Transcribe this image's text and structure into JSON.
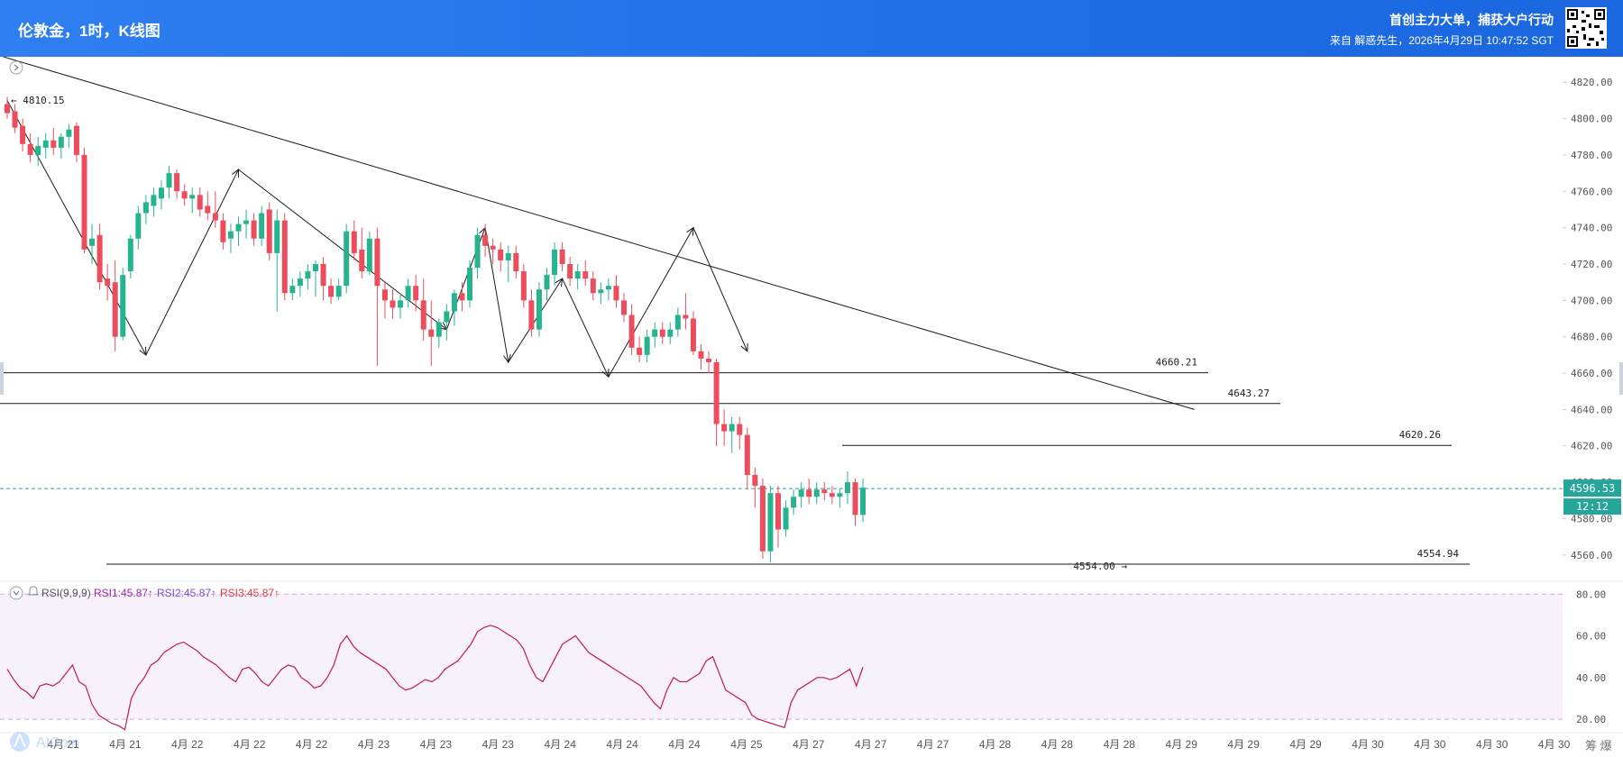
{
  "header": {
    "title": "伦敦金，1时，K线图",
    "slogan": "首创主力大单，捕获大户行动",
    "source": "来自 解惑先生，2026年4月29日 10:47:52 SGT"
  },
  "rsi_legend": {
    "name": "RSI(9,9,9)",
    "rsi1": "RSI1:45.87↑",
    "rsi2": "RSI2:45.87↑",
    "rsi3": "RSI3:45.87↑"
  },
  "watermark": "AICoin",
  "corner_text": "筹  爆",
  "colors": {
    "up": "#26b48e",
    "down": "#eb4d5c",
    "rsi_line": "#c2185b",
    "rsi_band": "#f6f1fb",
    "current_price": "#26a69a"
  },
  "chart_data": [
    {
      "type": "candlestick",
      "title": "伦敦金，1时，K线图",
      "y_ticks": [
        "4820.00",
        "4800.00",
        "4780.00",
        "4760.00",
        "4740.00",
        "4720.00",
        "4700.00",
        "4680.00",
        "4660.00",
        "4640.00",
        "4620.00",
        "4600.00",
        "4580.00",
        "4560.00"
      ],
      "ylim": [
        4548,
        4834
      ],
      "x_tick_labels": [
        "4月 21",
        "4月 21",
        "4月 22",
        "4月 22",
        "4月 22",
        "4月 23",
        "4月 23",
        "4月 23",
        "4月 24",
        "4月 24",
        "4月 24",
        "4月 25",
        "4月 27",
        "4月 27",
        "4月 27",
        "4月 28",
        "4月 28",
        "4月 28",
        "4月 29",
        "4月 29",
        "4月 29",
        "4月 30",
        "4月 30",
        "4月 30",
        "4月 30"
      ],
      "current_price": 4596.53,
      "countdown": "12:12",
      "price_annotations": [
        {
          "label": "← 4810.15",
          "value": 4810.15
        },
        {
          "label": "4554.00 →",
          "value": 4554.0
        }
      ],
      "horizontal_levels": [
        {
          "label": "4660.21",
          "value": 4660.21
        },
        {
          "label": "4643.27",
          "value": 4643.27
        },
        {
          "label": "4620.26",
          "value": 4620.26
        },
        {
          "label": "4554.94",
          "value": 4554.94
        }
      ],
      "ohlc": [
        [
          4808,
          4812,
          4800,
          4803
        ],
        [
          4804,
          4808,
          4792,
          4795
        ],
        [
          4796,
          4800,
          4782,
          4786
        ],
        [
          4786,
          4792,
          4776,
          4780
        ],
        [
          4780,
          4790,
          4774,
          4785
        ],
        [
          4784,
          4792,
          4778,
          4788
        ],
        [
          4788,
          4795,
          4780,
          4784
        ],
        [
          4784,
          4792,
          4778,
          4790
        ],
        [
          4790,
          4797,
          4784,
          4794
        ],
        [
          4796,
          4798,
          4776,
          4780
        ],
        [
          4780,
          4784,
          4726,
          4728
        ],
        [
          4730,
          4742,
          4720,
          4734
        ],
        [
          4736,
          4742,
          4706,
          4710
        ],
        [
          4712,
          4720,
          4700,
          4708
        ],
        [
          4710,
          4722,
          4672,
          4680
        ],
        [
          4680,
          4718,
          4678,
          4714
        ],
        [
          4716,
          4736,
          4712,
          4734
        ],
        [
          4734,
          4752,
          4728,
          4748
        ],
        [
          4748,
          4758,
          4742,
          4754
        ],
        [
          4752,
          4762,
          4746,
          4758
        ],
        [
          4756,
          4766,
          4750,
          4762
        ],
        [
          4762,
          4774,
          4756,
          4770
        ],
        [
          4770,
          4772,
          4756,
          4760
        ],
        [
          4760,
          4764,
          4752,
          4756
        ],
        [
          4756,
          4762,
          4748,
          4758
        ],
        [
          4758,
          4762,
          4746,
          4750
        ],
        [
          4752,
          4760,
          4744,
          4748
        ],
        [
          4748,
          4760,
          4740,
          4744
        ],
        [
          4744,
          4748,
          4728,
          4732
        ],
        [
          4734,
          4742,
          4726,
          4738
        ],
        [
          4738,
          4746,
          4730,
          4742
        ],
        [
          4742,
          4750,
          4734,
          4744
        ],
        [
          4744,
          4748,
          4730,
          4734
        ],
        [
          4734,
          4752,
          4730,
          4748
        ],
        [
          4750,
          4754,
          4722,
          4726
        ],
        [
          4726,
          4750,
          4694,
          4744
        ],
        [
          4744,
          4748,
          4700,
          4704
        ],
        [
          4704,
          4712,
          4700,
          4708
        ],
        [
          4708,
          4716,
          4702,
          4712
        ],
        [
          4712,
          4720,
          4706,
          4716
        ],
        [
          4716,
          4722,
          4702,
          4720
        ],
        [
          4720,
          4724,
          4700,
          4708
        ],
        [
          4708,
          4712,
          4698,
          4702
        ],
        [
          4702,
          4712,
          4700,
          4708
        ],
        [
          4708,
          4742,
          4704,
          4738
        ],
        [
          4738,
          4744,
          4722,
          4726
        ],
        [
          4728,
          4740,
          4712,
          4716
        ],
        [
          4716,
          4738,
          4714,
          4734
        ],
        [
          4734,
          4740,
          4664,
          4708
        ],
        [
          4706,
          4710,
          4690,
          4700
        ],
        [
          4700,
          4706,
          4690,
          4696
        ],
        [
          4696,
          4704,
          4690,
          4700
        ],
        [
          4700,
          4712,
          4696,
          4708
        ],
        [
          4708,
          4714,
          4694,
          4700
        ],
        [
          4700,
          4712,
          4678,
          4684
        ],
        [
          4684,
          4700,
          4664,
          4680
        ],
        [
          4680,
          4690,
          4674,
          4688
        ],
        [
          4688,
          4698,
          4678,
          4694
        ],
        [
          4694,
          4706,
          4686,
          4704
        ],
        [
          4704,
          4710,
          4694,
          4700
        ],
        [
          4700,
          4722,
          4696,
          4718
        ],
        [
          4718,
          4740,
          4712,
          4736
        ],
        [
          4736,
          4742,
          4724,
          4730
        ],
        [
          4730,
          4734,
          4720,
          4728
        ],
        [
          4728,
          4732,
          4716,
          4722
        ],
        [
          4722,
          4730,
          4710,
          4726
        ],
        [
          4726,
          4730,
          4712,
          4716
        ],
        [
          4716,
          4720,
          4696,
          4700
        ],
        [
          4700,
          4706,
          4680,
          4684
        ],
        [
          4684,
          4710,
          4680,
          4706
        ],
        [
          4706,
          4718,
          4700,
          4714
        ],
        [
          4714,
          4732,
          4708,
          4728
        ],
        [
          4728,
          4732,
          4716,
          4720
        ],
        [
          4720,
          4724,
          4708,
          4712
        ],
        [
          4712,
          4720,
          4706,
          4716
        ],
        [
          4716,
          4722,
          4708,
          4712
        ],
        [
          4712,
          4716,
          4700,
          4704
        ],
        [
          4704,
          4710,
          4698,
          4706
        ],
        [
          4706,
          4712,
          4700,
          4708
        ],
        [
          4708,
          4714,
          4696,
          4700
        ],
        [
          4700,
          4704,
          4688,
          4692
        ],
        [
          4692,
          4698,
          4670,
          4674
        ],
        [
          4674,
          4680,
          4666,
          4670
        ],
        [
          4670,
          4684,
          4666,
          4680
        ],
        [
          4680,
          4688,
          4674,
          4684
        ],
        [
          4684,
          4688,
          4676,
          4680
        ],
        [
          4680,
          4688,
          4676,
          4684
        ],
        [
          4684,
          4696,
          4680,
          4692
        ],
        [
          4692,
          4704,
          4684,
          4690
        ],
        [
          4690,
          4694,
          4670,
          4672
        ],
        [
          4672,
          4676,
          4662,
          4668
        ],
        [
          4668,
          4672,
          4660,
          4666
        ],
        [
          4666,
          4668,
          4620,
          4632
        ],
        [
          4632,
          4640,
          4620,
          4628
        ],
        [
          4628,
          4636,
          4616,
          4632
        ],
        [
          4632,
          4636,
          4618,
          4626
        ],
        [
          4626,
          4630,
          4596,
          4604
        ],
        [
          4604,
          4608,
          4586,
          4598
        ],
        [
          4598,
          4602,
          4558,
          4562
        ],
        [
          4562,
          4598,
          4556,
          4594
        ],
        [
          4594,
          4598,
          4564,
          4574
        ],
        [
          4574,
          4590,
          4570,
          4586
        ],
        [
          4586,
          4596,
          4582,
          4592
        ],
        [
          4592,
          4600,
          4586,
          4596
        ],
        [
          4596,
          4602,
          4588,
          4592
        ],
        [
          4592,
          4600,
          4588,
          4596
        ],
        [
          4596,
          4600,
          4590,
          4594
        ],
        [
          4594,
          4598,
          4588,
          4592
        ],
        [
          4592,
          4596,
          4586,
          4594
        ],
        [
          4594,
          4606,
          4588,
          4600
        ],
        [
          4600,
          4602,
          4576,
          4582
        ],
        [
          4582,
          4602,
          4578,
          4597
        ]
      ],
      "trend_line": {
        "from": [
          -0.5,
          4834
        ],
        "to": [
          154,
          4640
        ]
      },
      "zigzag": [
        [
          0,
          4810
        ],
        [
          18,
          4670
        ],
        [
          30,
          4772
        ],
        [
          57,
          4684
        ],
        [
          62,
          4740
        ],
        [
          65,
          4666
        ],
        [
          72,
          4712
        ],
        [
          78,
          4658
        ],
        [
          89,
          4740
        ],
        [
          96,
          4672
        ]
      ]
    },
    {
      "type": "line",
      "title": "RSI(9,9,9)",
      "y_ticks": [
        "80.00",
        "60.00",
        "40.00",
        "20.00"
      ],
      "ylim": [
        14,
        84
      ],
      "bands": [
        20,
        80
      ],
      "series": [
        {
          "name": "RSI1",
          "values": [
            44,
            39,
            35,
            33,
            30,
            36,
            37,
            36,
            38,
            42,
            46,
            38,
            36,
            27,
            22,
            20,
            18,
            17,
            15,
            30,
            36,
            40,
            46,
            48,
            52,
            54,
            56,
            57,
            55,
            53,
            50,
            48,
            46,
            43,
            40,
            38,
            44,
            45,
            42,
            38,
            36,
            40,
            44,
            46,
            45,
            40,
            38,
            35,
            36,
            40,
            46,
            56,
            60,
            55,
            52,
            50,
            48,
            46,
            44,
            40,
            36,
            34,
            35,
            37,
            39,
            38,
            40,
            44,
            46,
            48,
            52,
            56,
            62,
            64,
            65,
            64,
            62,
            60,
            58,
            54,
            46,
            40,
            38,
            44,
            50,
            56,
            58,
            60,
            56,
            52,
            50,
            48,
            46,
            44,
            42,
            40,
            38,
            36,
            32,
            28,
            25,
            34,
            40,
            38,
            38,
            40,
            42,
            48,
            50,
            42,
            34,
            32,
            30,
            28,
            22,
            20,
            19,
            18,
            17,
            16,
            28,
            34,
            36,
            38,
            40,
            40,
            39,
            40,
            42,
            44,
            36,
            45
          ]
        }
      ]
    }
  ]
}
